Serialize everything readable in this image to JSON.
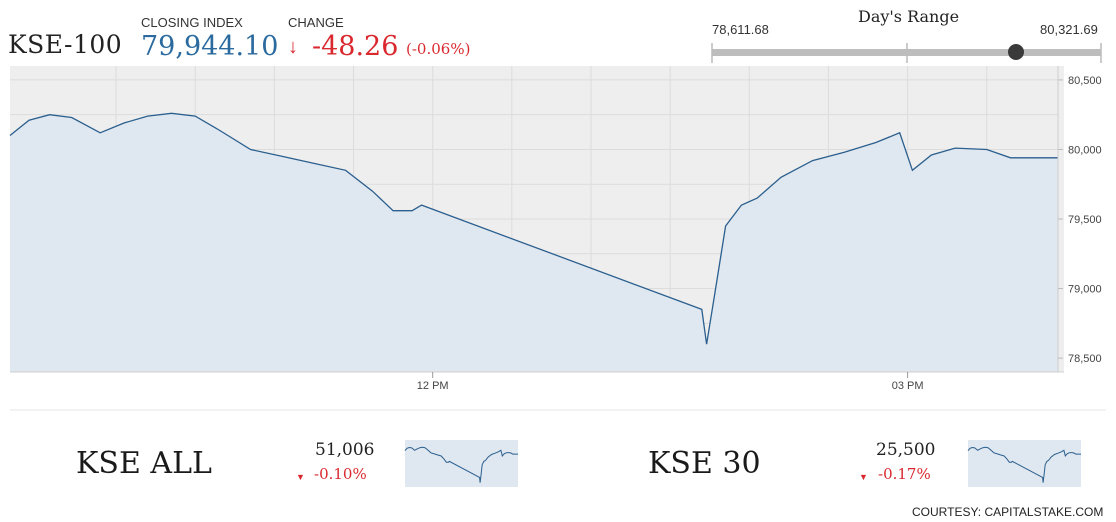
{
  "main": {
    "title": "KSE-100",
    "closing_label": "CLOSING INDEX",
    "closing_value": "79,944.10",
    "change_label": "CHANGE",
    "change_value": "-48.26",
    "change_pct": "(-0.06%)"
  },
  "range": {
    "title": "Day's Range",
    "low": "78,611.68",
    "high": "80,321.69"
  },
  "chart_data": {
    "type": "area",
    "x_tick_labels": [
      "12 PM",
      "03 PM"
    ],
    "y_tick_labels": [
      "80,500",
      "80,000",
      "79,500",
      "79,000",
      "78,500"
    ],
    "ylim": [
      78400,
      80600
    ],
    "grid": true,
    "series": [
      {
        "values": [
          [
            9.33,
            80100
          ],
          [
            9.45,
            80210
          ],
          [
            9.58,
            80250
          ],
          [
            9.72,
            80230
          ],
          [
            9.9,
            80120
          ],
          [
            10.05,
            80190
          ],
          [
            10.2,
            80240
          ],
          [
            10.35,
            80260
          ],
          [
            10.5,
            80240
          ],
          [
            10.65,
            80140
          ],
          [
            10.85,
            80000
          ],
          [
            11.05,
            79950
          ],
          [
            11.25,
            79900
          ],
          [
            11.45,
            79850
          ],
          [
            11.62,
            79700
          ],
          [
            11.75,
            79560
          ],
          [
            11.87,
            79560
          ],
          [
            11.93,
            79600
          ],
          [
            13.7,
            78850
          ],
          [
            13.73,
            78600
          ],
          [
            13.78,
            78950
          ],
          [
            13.85,
            79450
          ],
          [
            13.95,
            79600
          ],
          [
            14.05,
            79650
          ],
          [
            14.2,
            79800
          ],
          [
            14.4,
            79920
          ],
          [
            14.6,
            79980
          ],
          [
            14.8,
            80050
          ],
          [
            14.95,
            80120
          ],
          [
            15.03,
            79850
          ],
          [
            15.15,
            79960
          ],
          [
            15.3,
            80010
          ],
          [
            15.5,
            80000
          ],
          [
            15.65,
            79940
          ],
          [
            15.95,
            79940
          ]
        ]
      }
    ]
  },
  "bottom": [
    {
      "title": "KSE ALL",
      "value": "51,006",
      "change": "-0.10%"
    },
    {
      "title": "KSE 30",
      "value": "25,500",
      "change": "-0.17%"
    }
  ],
  "footer": {
    "courtesy": "COURTESY: CAPITALSTAKE.COM"
  },
  "colors": {
    "line": "#2b5f8e",
    "fill": "#dfe7f0",
    "negative": "#d9292f",
    "plot_bg": "#eeeeee"
  }
}
